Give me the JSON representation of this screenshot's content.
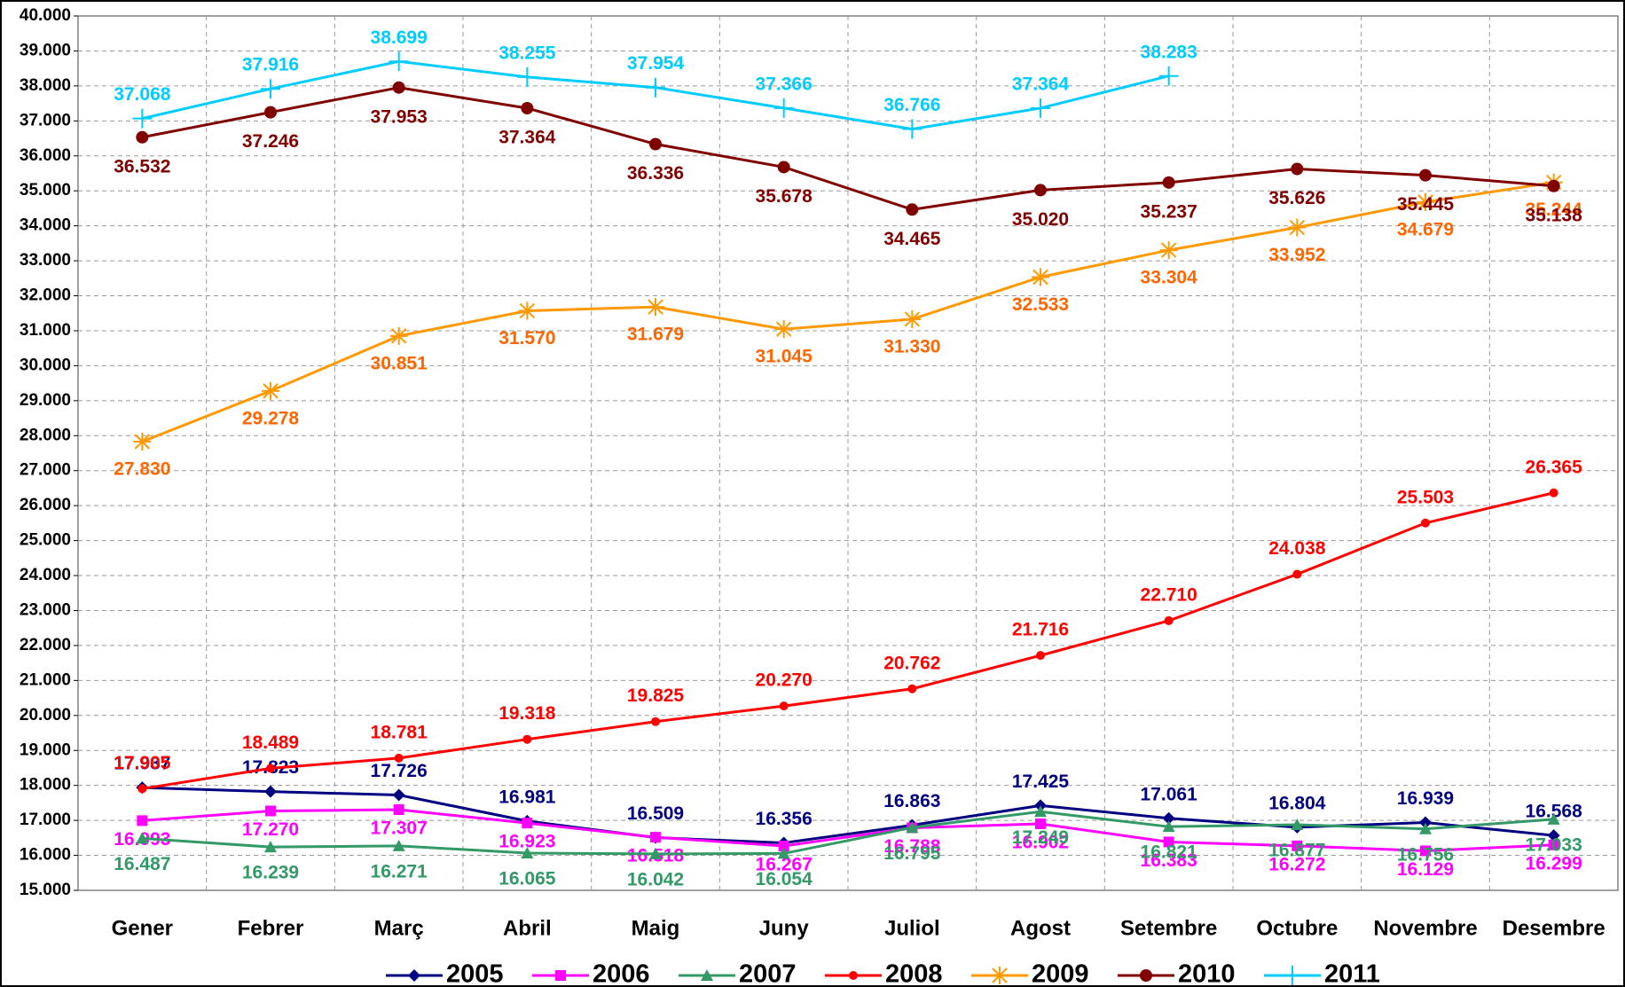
{
  "chart_data": {
    "type": "line",
    "categories": [
      "Gener",
      "Febrer",
      "Març",
      "Abril",
      "Maig",
      "Juny",
      "Juliol",
      "Agost",
      "Setembre",
      "Octubre",
      "Novembre",
      "Desembre"
    ],
    "ylim": [
      15000,
      40000
    ],
    "yticks": [
      {
        "value": 15000,
        "label": "15.000"
      },
      {
        "value": 16000,
        "label": "16.000"
      },
      {
        "value": 17000,
        "label": "17.000"
      },
      {
        "value": 18000,
        "label": "18.000"
      },
      {
        "value": 19000,
        "label": "19.000"
      },
      {
        "value": 20000,
        "label": "20.000"
      },
      {
        "value": 21000,
        "label": "21.000"
      },
      {
        "value": 22000,
        "label": "22.000"
      },
      {
        "value": 23000,
        "label": "23.000"
      },
      {
        "value": 24000,
        "label": "24.000"
      },
      {
        "value": 25000,
        "label": "25.000"
      },
      {
        "value": 26000,
        "label": "26.000"
      },
      {
        "value": 27000,
        "label": "27.000"
      },
      {
        "value": 28000,
        "label": "28.000"
      },
      {
        "value": 29000,
        "label": "29.000"
      },
      {
        "value": 30000,
        "label": "30.000"
      },
      {
        "value": 31000,
        "label": "31.000"
      },
      {
        "value": 32000,
        "label": "32.000"
      },
      {
        "value": 33000,
        "label": "33.000"
      },
      {
        "value": 34000,
        "label": "34.000"
      },
      {
        "value": 35000,
        "label": "35.000"
      },
      {
        "value": 36000,
        "label": "36.000"
      },
      {
        "value": 37000,
        "label": "37.000"
      },
      {
        "value": 38000,
        "label": "38.000"
      },
      {
        "value": 39000,
        "label": "39.000"
      },
      {
        "value": 40000,
        "label": "40.000"
      }
    ],
    "grid": true,
    "legend": "bottom",
    "series": [
      {
        "name": "2005",
        "color": "#000080",
        "marker": "diamond",
        "values": [
          17937,
          17823,
          17726,
          16981,
          16509,
          16356,
          16863,
          17425,
          17061,
          16804,
          16939,
          16568
        ],
        "value_labels": [
          "17.937",
          "17.823",
          "17.726",
          "16.981",
          "16.509",
          "16.356",
          "16.863",
          "17.425",
          "17.061",
          "16.804",
          "16.939",
          "16.568"
        ]
      },
      {
        "name": "2006",
        "color": "#ff00ff",
        "marker": "square",
        "values": [
          16993,
          17270,
          17307,
          16923,
          16518,
          16267,
          16788,
          16902,
          16383,
          16272,
          16129,
          16299
        ],
        "value_labels": [
          "16.993",
          "17.270",
          "17.307",
          "16.923",
          "16.518",
          "16.267",
          "16.788",
          "16.902",
          "16.383",
          "16.272",
          "16.129",
          "16.299"
        ]
      },
      {
        "name": "2007",
        "color": "#339966",
        "marker": "triangle",
        "values": [
          16487,
          16239,
          16271,
          16065,
          16042,
          16054,
          16795,
          17249,
          16821,
          16877,
          16756,
          17033
        ],
        "value_labels": [
          "16.487",
          "16.239",
          "16.271",
          "16.065",
          "16.042",
          "16.054",
          "16.795",
          "17.249",
          "16.821",
          "16.877",
          "16.756",
          "17.033"
        ]
      },
      {
        "name": "2008",
        "color": "#ff0000",
        "marker": "circle",
        "values": [
          17905,
          18489,
          18781,
          19318,
          19825,
          20270,
          20762,
          21716,
          22710,
          24038,
          25503,
          26365
        ],
        "value_labels": [
          "17.905",
          "18.489",
          "18.781",
          "19.318",
          "19.825",
          "20.270",
          "20.762",
          "21.716",
          "22.710",
          "24.038",
          "25.503",
          "26.365"
        ]
      },
      {
        "name": "2009",
        "color": "#ff9900",
        "marker": "star",
        "values": [
          27830,
          29278,
          30851,
          31570,
          31679,
          31045,
          31330,
          32533,
          33304,
          33952,
          34679,
          35244
        ],
        "value_labels": [
          "27.830",
          "29.278",
          "30.851",
          "31.570",
          "31.679",
          "31.045",
          "31.330",
          "32.533",
          "33.304",
          "33.952",
          "34.679",
          "35.244"
        ]
      },
      {
        "name": "2010",
        "color": "#800000",
        "marker": "bigcircle",
        "values": [
          36532,
          37246,
          37953,
          37364,
          36336,
          35678,
          34465,
          35020,
          35237,
          35626,
          35445,
          35138
        ],
        "value_labels": [
          "36.532",
          "37.246",
          "37.953",
          "37.364",
          "36.336",
          "35.678",
          "34.465",
          "35.020",
          "35.237",
          "35.626",
          "35.445",
          "35.138"
        ]
      },
      {
        "name": "2011",
        "color": "#00ccff",
        "marker": "plus",
        "values": [
          37068,
          37916,
          38699,
          38255,
          37954,
          37366,
          36766,
          37364,
          38283,
          null,
          null,
          null
        ],
        "value_labels": [
          "37.068",
          "37.916",
          "38.699",
          "38.255",
          "37.954",
          "37.366",
          "36.766",
          "37.364",
          "38.283",
          null,
          null,
          null
        ]
      }
    ]
  }
}
